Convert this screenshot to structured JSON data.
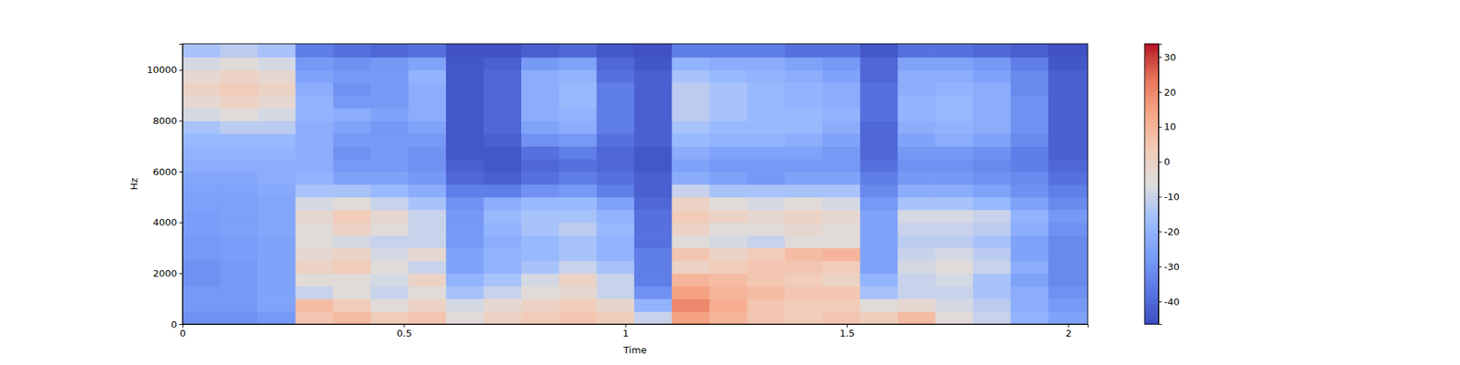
{
  "chart_data": {
    "type": "heatmap",
    "x_label": "Time",
    "y_label": "Hz",
    "xlim": [
      0,
      2.044
    ],
    "ylim": [
      0,
      11025
    ],
    "xticks": [
      0,
      0.5,
      1,
      1.5,
      2
    ],
    "yticks": [
      0,
      2000,
      4000,
      6000,
      8000,
      10000
    ],
    "x": [
      0,
      0.085,
      0.17,
      0.255,
      0.34,
      0.425,
      0.51,
      0.595,
      0.68,
      0.765,
      0.85,
      0.935,
      1.02,
      1.105,
      1.19,
      1.275,
      1.36,
      1.445,
      1.53,
      1.615,
      1.7,
      1.785,
      1.87,
      1.955,
      2.044
    ],
    "y": [
      0,
      500,
      1000,
      1500,
      2000,
      2500,
      3000,
      3500,
      4000,
      4500,
      5000,
      5500,
      6000,
      6500,
      7000,
      7500,
      8000,
      8500,
      9000,
      9500,
      10000,
      10500,
      11025
    ],
    "z": [
      [
        -30,
        -30,
        -28,
        5,
        8,
        3,
        5,
        -5,
        0,
        3,
        5,
        2,
        -10,
        15,
        10,
        5,
        3,
        5,
        2,
        8,
        -5,
        -10,
        -20,
        -25
      ],
      [
        -28,
        -28,
        -25,
        8,
        3,
        -5,
        0,
        -8,
        -3,
        0,
        3,
        -2,
        -20,
        20,
        12,
        5,
        3,
        3,
        -5,
        -3,
        -8,
        -12,
        -22,
        -28
      ],
      [
        -28,
        -28,
        -25,
        -10,
        -5,
        -10,
        -5,
        -15,
        -10,
        -5,
        -3,
        -10,
        -30,
        15,
        10,
        8,
        5,
        5,
        -15,
        -10,
        -10,
        -15,
        -22,
        -30
      ],
      [
        -30,
        -28,
        -25,
        -5,
        -5,
        -8,
        0,
        -20,
        -15,
        -8,
        0,
        -10,
        -35,
        10,
        8,
        5,
        3,
        0,
        -20,
        -10,
        -8,
        -15,
        -25,
        -32
      ],
      [
        -30,
        -28,
        -25,
        0,
        3,
        -5,
        -10,
        -25,
        -20,
        -15,
        -10,
        -15,
        -35,
        0,
        3,
        5,
        5,
        3,
        -25,
        -8,
        -5,
        -10,
        -22,
        -32
      ],
      [
        -28,
        -27,
        -25,
        -3,
        0,
        -8,
        -3,
        -25,
        -20,
        -18,
        -15,
        -20,
        -35,
        5,
        0,
        3,
        8,
        10,
        -25,
        -10,
        -8,
        -12,
        -25,
        -32
      ],
      [
        -28,
        -27,
        -25,
        -5,
        -8,
        -10,
        -10,
        -28,
        -22,
        -18,
        -15,
        -20,
        -38,
        -5,
        -8,
        -10,
        -5,
        -5,
        -25,
        -12,
        -12,
        -15,
        -25,
        -32
      ],
      [
        -27,
        -26,
        -24,
        -5,
        0,
        -5,
        -10,
        -28,
        -20,
        -15,
        -12,
        -18,
        -38,
        0,
        -5,
        -5,
        -3,
        -5,
        -25,
        -10,
        -10,
        -12,
        -22,
        -30
      ],
      [
        -27,
        -26,
        -24,
        -3,
        3,
        -3,
        -10,
        -28,
        -18,
        -15,
        -15,
        -20,
        -38,
        3,
        0,
        -3,
        0,
        -3,
        -25,
        -8,
        -8,
        -10,
        -20,
        -28
      ],
      [
        -26,
        -26,
        -24,
        -8,
        -5,
        -10,
        -15,
        -30,
        -22,
        -18,
        -18,
        -25,
        -40,
        0,
        -5,
        -8,
        -5,
        -8,
        -28,
        -15,
        -15,
        -18,
        -25,
        -32
      ],
      [
        -25,
        -25,
        -23,
        -15,
        -15,
        -18,
        -22,
        -35,
        -35,
        -30,
        -28,
        -35,
        -42,
        -10,
        -15,
        -15,
        -15,
        -15,
        -32,
        -22,
        -22,
        -25,
        -30,
        -35
      ],
      [
        -24,
        -24,
        -22,
        -20,
        -25,
        -25,
        -28,
        -40,
        -42,
        -38,
        -35,
        -38,
        -42,
        -22,
        -25,
        -28,
        -25,
        -25,
        -35,
        -28,
        -28,
        -30,
        -32,
        -38
      ],
      [
        -22,
        -22,
        -22,
        -22,
        -28,
        -28,
        -30,
        -42,
        -44,
        -40,
        -38,
        -40,
        -44,
        -25,
        -28,
        -28,
        -28,
        -28,
        -38,
        -30,
        -30,
        -32,
        -35,
        -40
      ],
      [
        -20,
        -20,
        -20,
        -22,
        -30,
        -28,
        -30,
        -44,
        -44,
        -38,
        -35,
        -40,
        -44,
        -22,
        -25,
        -25,
        -25,
        -28,
        -40,
        -28,
        -28,
        -30,
        -35,
        -42
      ],
      [
        -18,
        -18,
        -18,
        -22,
        -28,
        -28,
        -28,
        -44,
        -42,
        -30,
        -28,
        -38,
        -42,
        -18,
        -20,
        -20,
        -22,
        -25,
        -40,
        -25,
        -22,
        -25,
        -32,
        -42
      ],
      [
        -15,
        -12,
        -12,
        -22,
        -25,
        -28,
        -25,
        -44,
        -40,
        -25,
        -22,
        -35,
        -42,
        -15,
        -18,
        -18,
        -18,
        -22,
        -40,
        -22,
        -20,
        -22,
        -30,
        -42
      ],
      [
        -8,
        -5,
        -8,
        -20,
        -22,
        -25,
        -22,
        -44,
        -40,
        -22,
        -20,
        -35,
        -42,
        -12,
        -15,
        -18,
        -18,
        -20,
        -38,
        -20,
        -18,
        -22,
        -30,
        -42
      ],
      [
        -3,
        0,
        -3,
        -20,
        -28,
        -28,
        -22,
        -44,
        -40,
        -22,
        -18,
        -35,
        -42,
        -12,
        -15,
        -18,
        -20,
        -22,
        -38,
        -20,
        -18,
        -22,
        -30,
        -42
      ],
      [
        0,
        3,
        0,
        -22,
        -30,
        -28,
        -22,
        -44,
        -40,
        -22,
        -18,
        -35,
        -42,
        -12,
        -15,
        -18,
        -20,
        -22,
        -38,
        -22,
        -20,
        -22,
        -32,
        -42
      ],
      [
        -3,
        0,
        -3,
        -25,
        -28,
        -28,
        -20,
        -44,
        -40,
        -22,
        -20,
        -38,
        -42,
        -15,
        -18,
        -20,
        -22,
        -25,
        -40,
        -22,
        -22,
        -25,
        -32,
        -42
      ],
      [
        -8,
        -5,
        -8,
        -28,
        -30,
        -28,
        -25,
        -44,
        -42,
        -28,
        -25,
        -40,
        -44,
        -20,
        -22,
        -22,
        -25,
        -28,
        -40,
        -25,
        -25,
        -28,
        -35,
        -44
      ],
      [
        -15,
        -12,
        -15,
        -35,
        -38,
        -40,
        -38,
        -45,
        -45,
        -42,
        -40,
        -44,
        -45,
        -35,
        -35,
        -35,
        -38,
        -38,
        -44,
        -38,
        -38,
        -40,
        -42,
        -45
      ]
    ],
    "colorbar_range": [
      -46.5,
      33.8
    ],
    "colorbar_ticks": [
      -40,
      -30,
      -20,
      -10,
      0,
      10,
      20,
      30
    ]
  }
}
